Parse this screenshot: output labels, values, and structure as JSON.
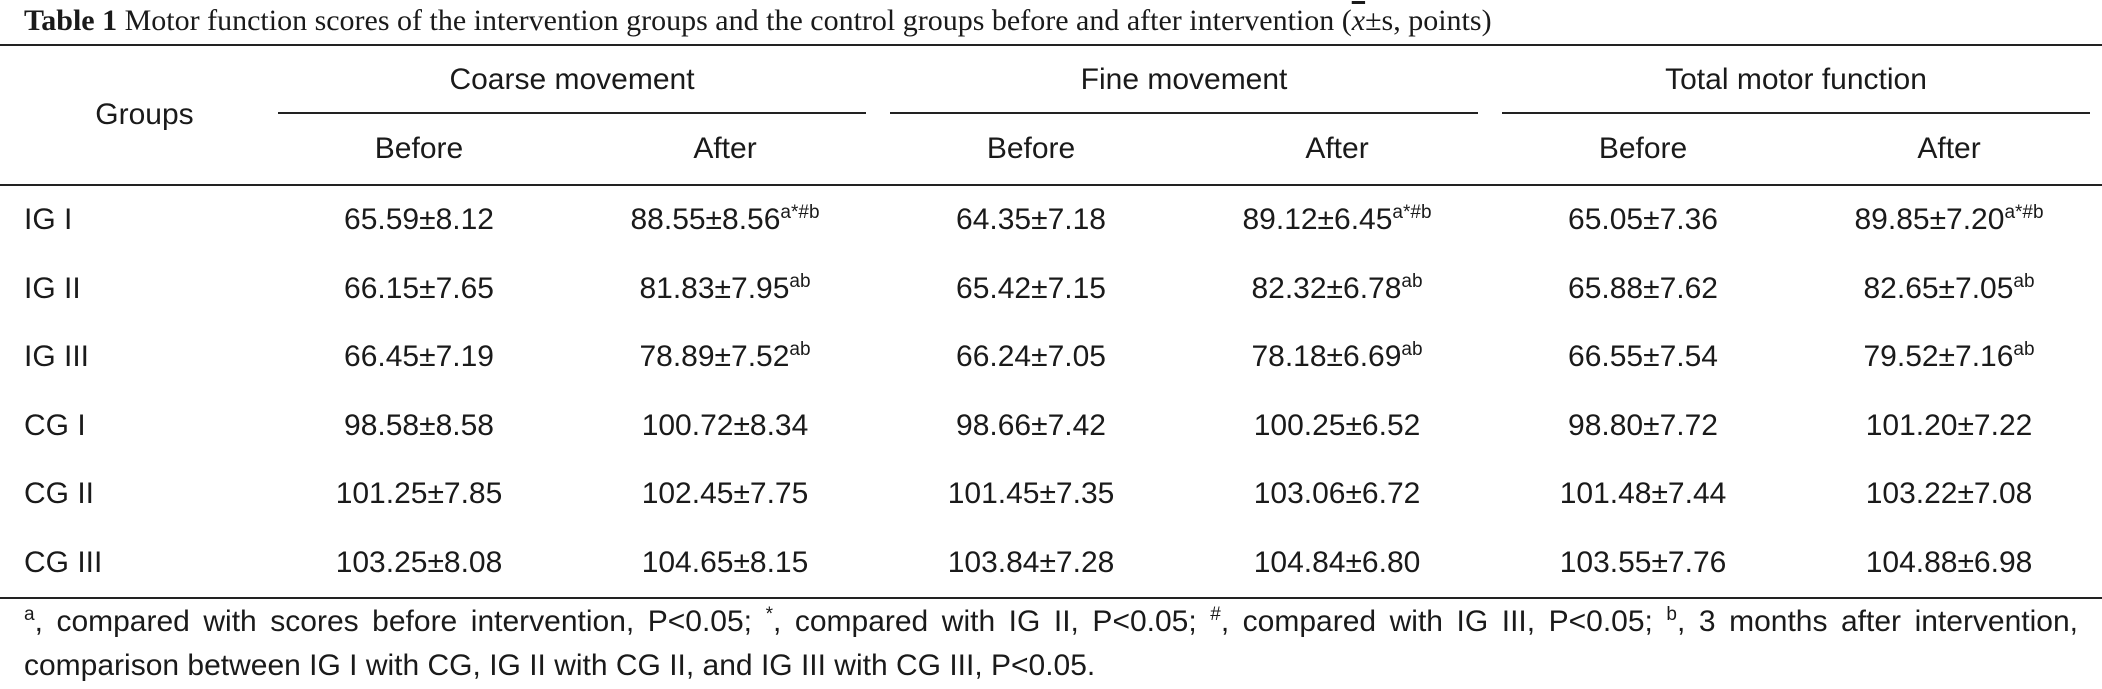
{
  "caption": {
    "label": "Table 1",
    "text_before": "Motor function scores of the intervention groups and the control groups before and after intervention (",
    "xbar": "x",
    "text_after": "±s, points)"
  },
  "header": {
    "groups": "Groups",
    "span_headers": [
      "Coarse movement",
      "Fine movement",
      "Total motor function"
    ],
    "sub_headers": [
      "Before",
      "After",
      "Before",
      "After",
      "Before",
      "After"
    ]
  },
  "rows": [
    {
      "group": "IG I",
      "cells": [
        {
          "value": "65.59±8.12",
          "sup": ""
        },
        {
          "value": "88.55±8.56",
          "sup": "a*#b"
        },
        {
          "value": "64.35±7.18",
          "sup": ""
        },
        {
          "value": "89.12±6.45",
          "sup": "a*#b"
        },
        {
          "value": "65.05±7.36",
          "sup": ""
        },
        {
          "value": "89.85±7.20",
          "sup": "a*#b"
        }
      ]
    },
    {
      "group": "IG II",
      "cells": [
        {
          "value": "66.15±7.65",
          "sup": ""
        },
        {
          "value": "81.83±7.95",
          "sup": "ab"
        },
        {
          "value": "65.42±7.15",
          "sup": ""
        },
        {
          "value": "82.32±6.78",
          "sup": "ab"
        },
        {
          "value": "65.88±7.62",
          "sup": ""
        },
        {
          "value": "82.65±7.05",
          "sup": "ab"
        }
      ]
    },
    {
      "group": "IG III",
      "cells": [
        {
          "value": "66.45±7.19",
          "sup": ""
        },
        {
          "value": "78.89±7.52",
          "sup": "ab"
        },
        {
          "value": "66.24±7.05",
          "sup": ""
        },
        {
          "value": "78.18±6.69",
          "sup": "ab"
        },
        {
          "value": "66.55±7.54",
          "sup": ""
        },
        {
          "value": "79.52±7.16",
          "sup": "ab"
        }
      ]
    },
    {
      "group": "CG I",
      "cells": [
        {
          "value": "98.58±8.58",
          "sup": ""
        },
        {
          "value": "100.72±8.34",
          "sup": ""
        },
        {
          "value": "98.66±7.42",
          "sup": ""
        },
        {
          "value": "100.25±6.52",
          "sup": ""
        },
        {
          "value": "98.80±7.72",
          "sup": ""
        },
        {
          "value": "101.20±7.22",
          "sup": ""
        }
      ]
    },
    {
      "group": "CG II",
      "cells": [
        {
          "value": "101.25±7.85",
          "sup": ""
        },
        {
          "value": "102.45±7.75",
          "sup": ""
        },
        {
          "value": "101.45±7.35",
          "sup": ""
        },
        {
          "value": "103.06±6.72",
          "sup": ""
        },
        {
          "value": "101.48±7.44",
          "sup": ""
        },
        {
          "value": "103.22±7.08",
          "sup": ""
        }
      ]
    },
    {
      "group": "CG III",
      "cells": [
        {
          "value": "103.25±8.08",
          "sup": ""
        },
        {
          "value": "104.65±8.15",
          "sup": ""
        },
        {
          "value": "103.84±7.28",
          "sup": ""
        },
        {
          "value": "104.84±6.80",
          "sup": ""
        },
        {
          "value": "103.55±7.76",
          "sup": ""
        },
        {
          "value": "104.88±6.98",
          "sup": ""
        }
      ]
    }
  ],
  "footnote": {
    "sup_a": "a",
    "text_a": ", compared with scores before intervention, P<0.05; ",
    "sup_star": "*",
    "text_star": ", compared with IG II, P<0.05; ",
    "sup_hash": "#",
    "text_hash": ", compared with IG III, P<0.05; ",
    "sup_b": "b",
    "text_b": ", 3 months after intervention, comparison between IG I with CG, IG II with CG II, and IG III with CG III, P<0.05."
  }
}
